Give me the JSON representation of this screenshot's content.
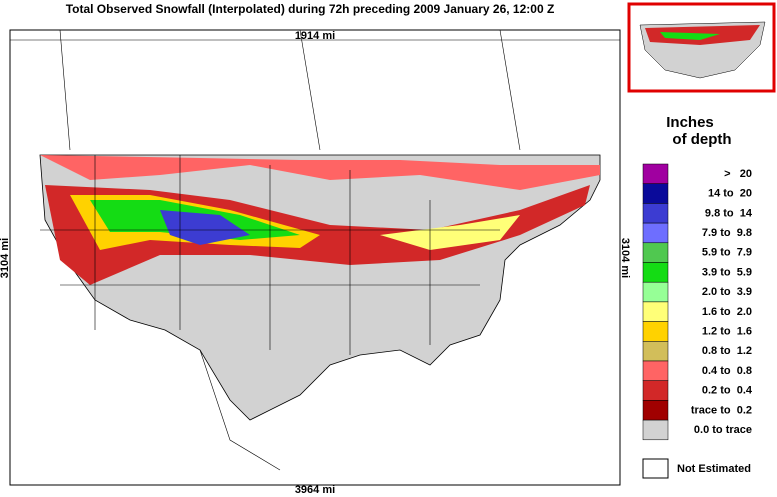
{
  "header": {
    "title": "Total Observed Snowfall (Interpolated) during 72h preceding 2009 January 26, 12:00 Z"
  },
  "map": {
    "top_scale": "1914 mi",
    "left_scale": "3104 mi",
    "right_scale": "3104 mi",
    "bottom_scale": "3964 mi"
  },
  "legend": {
    "title_line1": "Inches",
    "title_line2": "of depth",
    "rows": [
      {
        "label": ">   20",
        "color": "#a000a0"
      },
      {
        "label": "14 to  20",
        "color": "#0a0a9a"
      },
      {
        "label": "9.8 to  14",
        "color": "#3c3cd2"
      },
      {
        "label": "7.9 to  9.8",
        "color": "#6e6eff"
      },
      {
        "label": "5.9 to  7.9",
        "color": "#50c850"
      },
      {
        "label": "3.9 to  5.9",
        "color": "#14dc14"
      },
      {
        "label": "2.0 to  3.9",
        "color": "#96ff96"
      },
      {
        "label": "1.6 to  2.0",
        "color": "#ffff78"
      },
      {
        "label": "1.2 to  1.6",
        "color": "#ffd200"
      },
      {
        "label": "0.8 to  1.2",
        "color": "#d2be5a"
      },
      {
        "label": "0.4 to  0.8",
        "color": "#ff6464"
      },
      {
        "label": "0.2 to  0.4",
        "color": "#d22828"
      },
      {
        "label": "trace to  0.2",
        "color": "#a00000"
      },
      {
        "label": "0.0 to trace",
        "color": "#d2d2d2"
      }
    ],
    "not_estimated": "Not Estimated"
  }
}
